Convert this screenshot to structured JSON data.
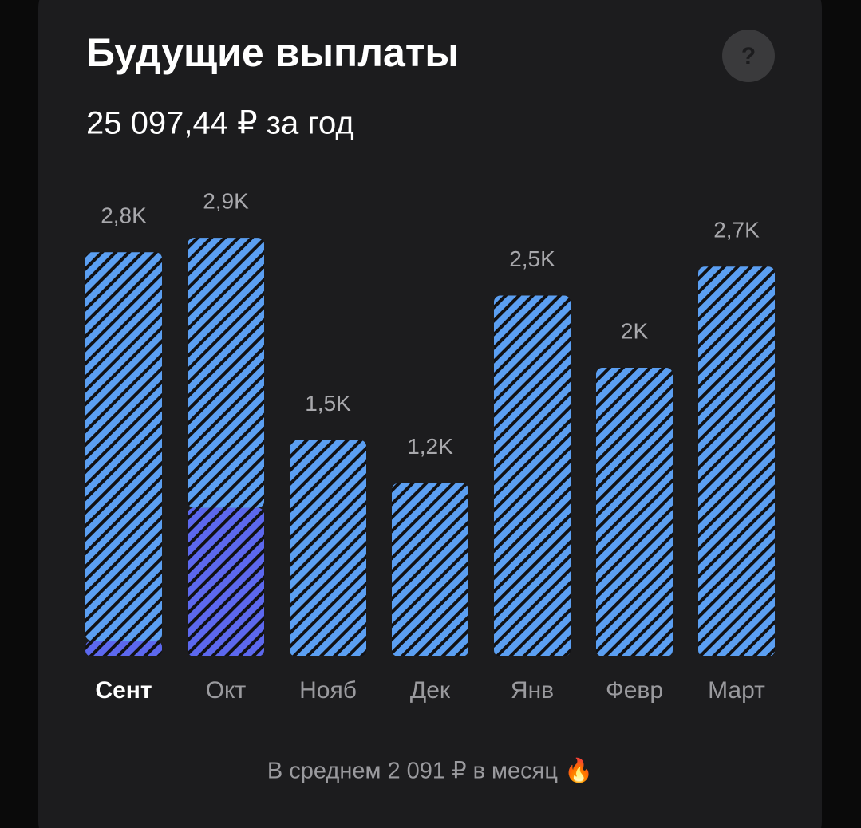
{
  "chart_data": {
    "type": "stacked-bar",
    "title": "Будущие выплаты",
    "subtitle": "25 097,44 ₽ за год",
    "help": "?",
    "footer": "В среднем 2 091 ₽ в месяц 🔥",
    "categories": [
      "Сент",
      "Окт",
      "Нояб",
      "Дек",
      "Янв",
      "Февр",
      "Март"
    ],
    "selected_index": 0,
    "series": [
      {
        "color": "#5c68ee",
        "values": [
          110,
          1030,
          0,
          0,
          0,
          0,
          0
        ]
      },
      {
        "color": "#5b9ff2",
        "values": [
          2690,
          1870,
          1500,
          1200,
          2500,
          2000,
          2700
        ]
      }
    ],
    "totals": [
      2800,
      2900,
      1500,
      1200,
      2500,
      2000,
      2700
    ],
    "value_labels": [
      "2,8K",
      "2,9K",
      "1,5K",
      "1,2K",
      "2,5K",
      "2K",
      "2,7K"
    ]
  }
}
